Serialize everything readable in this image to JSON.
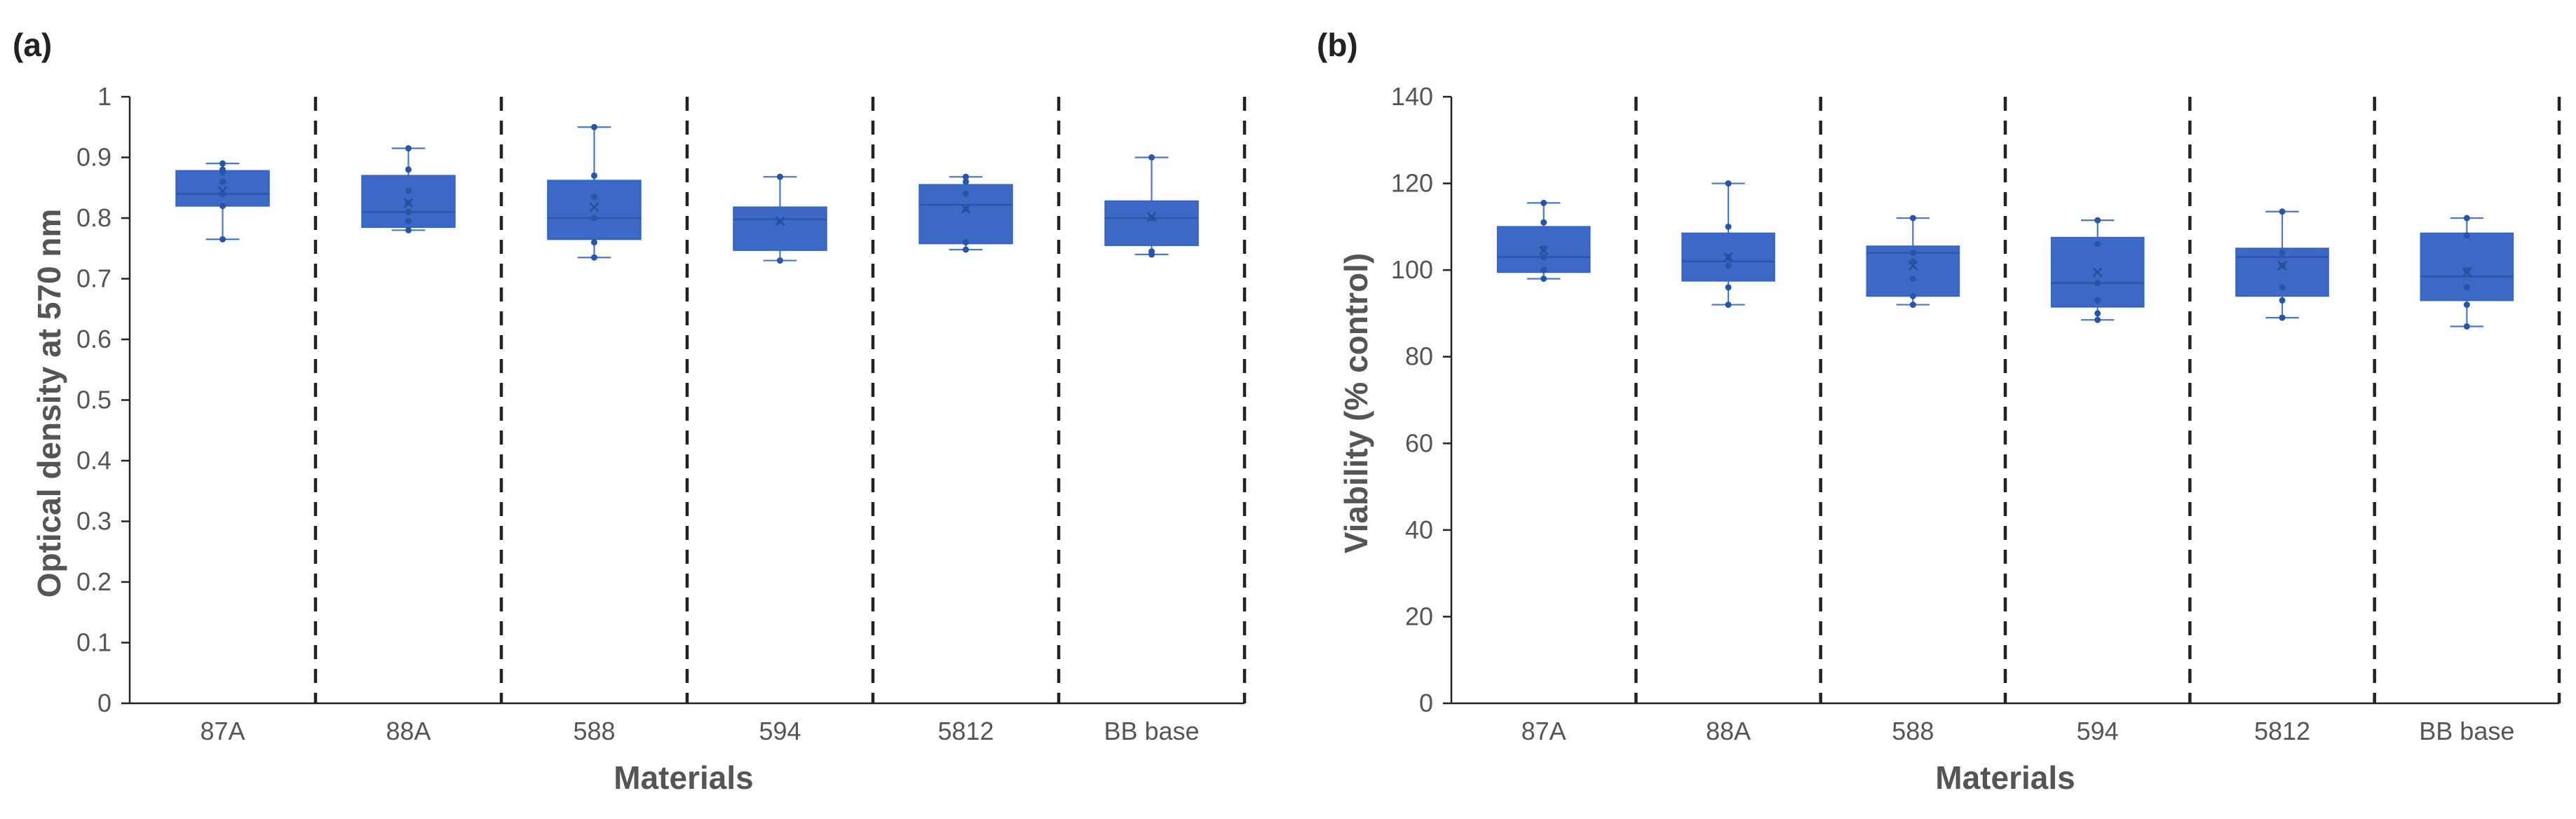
{
  "chart_data": [
    {
      "type": "box",
      "panel_label": "(a)",
      "title": "",
      "xlabel": "Materials",
      "ylabel": "Optical density at 570 nm",
      "ylim": [
        0,
        1
      ],
      "yticks": [
        "0",
        "0.1",
        "0.2",
        "0.3",
        "0.4",
        "0.5",
        "0.6",
        "0.7",
        "0.8",
        "0.9",
        "1"
      ],
      "ytick_values": [
        0,
        0.1,
        0.2,
        0.3,
        0.4,
        0.5,
        0.6,
        0.7,
        0.8,
        0.9,
        1.0
      ],
      "categories": [
        "87A",
        "88A",
        "588",
        "594",
        "5812",
        "BB base"
      ],
      "separators": "dashed vertical lines between categories",
      "boxes": [
        {
          "min": 0.765,
          "q1": 0.82,
          "median": 0.84,
          "q3": 0.878,
          "max": 0.89,
          "mean": 0.845,
          "points": [
            0.765,
            0.82,
            0.84,
            0.86,
            0.875,
            0.88,
            0.89
          ]
        },
        {
          "min": 0.78,
          "q1": 0.785,
          "median": 0.81,
          "q3": 0.87,
          "max": 0.915,
          "mean": 0.825,
          "points": [
            0.78,
            0.795,
            0.81,
            0.825,
            0.845,
            0.88,
            0.915
          ]
        },
        {
          "min": 0.735,
          "q1": 0.765,
          "median": 0.8,
          "q3": 0.862,
          "max": 0.95,
          "mean": 0.818,
          "points": [
            0.735,
            0.76,
            0.8,
            0.835,
            0.87,
            0.95
          ]
        },
        {
          "min": 0.73,
          "q1": 0.747,
          "median": 0.798,
          "q3": 0.818,
          "max": 0.868,
          "mean": 0.795,
          "points": [
            0.73,
            0.795,
            0.868
          ]
        },
        {
          "min": 0.748,
          "q1": 0.758,
          "median": 0.822,
          "q3": 0.855,
          "max": 0.868,
          "mean": 0.815,
          "points": [
            0.748,
            0.76,
            0.815,
            0.84,
            0.86,
            0.868
          ]
        },
        {
          "min": 0.74,
          "q1": 0.755,
          "median": 0.8,
          "q3": 0.828,
          "max": 0.9,
          "mean": 0.802,
          "points": [
            0.74,
            0.745,
            0.8,
            0.9
          ]
        }
      ]
    },
    {
      "type": "box",
      "panel_label": "(b)",
      "title": "",
      "xlabel": "Materials",
      "ylabel": "Viability (% control)",
      "ylim": [
        0,
        140
      ],
      "yticks": [
        "0",
        "20",
        "40",
        "60",
        "80",
        "100",
        "120",
        "140"
      ],
      "ytick_values": [
        0,
        20,
        40,
        60,
        80,
        100,
        120,
        140
      ],
      "categories": [
        "87A",
        "88A",
        "588",
        "594",
        "5812",
        "BB base"
      ],
      "separators": "dashed vertical lines between categories",
      "boxes": [
        {
          "min": 98,
          "q1": 99.5,
          "median": 103,
          "q3": 110,
          "max": 115.5,
          "mean": 104.5,
          "points": [
            98,
            100,
            103,
            105,
            111,
            115.5
          ]
        },
        {
          "min": 92,
          "q1": 97.5,
          "median": 102,
          "q3": 108.5,
          "max": 120,
          "mean": 103,
          "points": [
            92,
            96,
            101,
            103,
            110,
            120
          ]
        },
        {
          "min": 92,
          "q1": 94,
          "median": 104,
          "q3": 105.5,
          "max": 112,
          "mean": 101,
          "points": [
            92,
            94,
            98,
            102,
            104,
            112
          ]
        },
        {
          "min": 88.5,
          "q1": 91.5,
          "median": 97,
          "q3": 107.5,
          "max": 111.5,
          "mean": 99.5,
          "points": [
            88.5,
            90,
            93,
            97,
            106,
            111.5
          ]
        },
        {
          "min": 89,
          "q1": 94,
          "median": 103,
          "q3": 105,
          "max": 113.5,
          "mean": 101,
          "points": [
            89,
            93,
            96,
            101,
            104,
            113.5
          ]
        },
        {
          "min": 87,
          "q1": 93,
          "median": 98.5,
          "q3": 108.5,
          "max": 112,
          "mean": 99.5,
          "points": [
            87,
            92,
            96,
            100,
            108,
            112
          ]
        }
      ]
    }
  ]
}
